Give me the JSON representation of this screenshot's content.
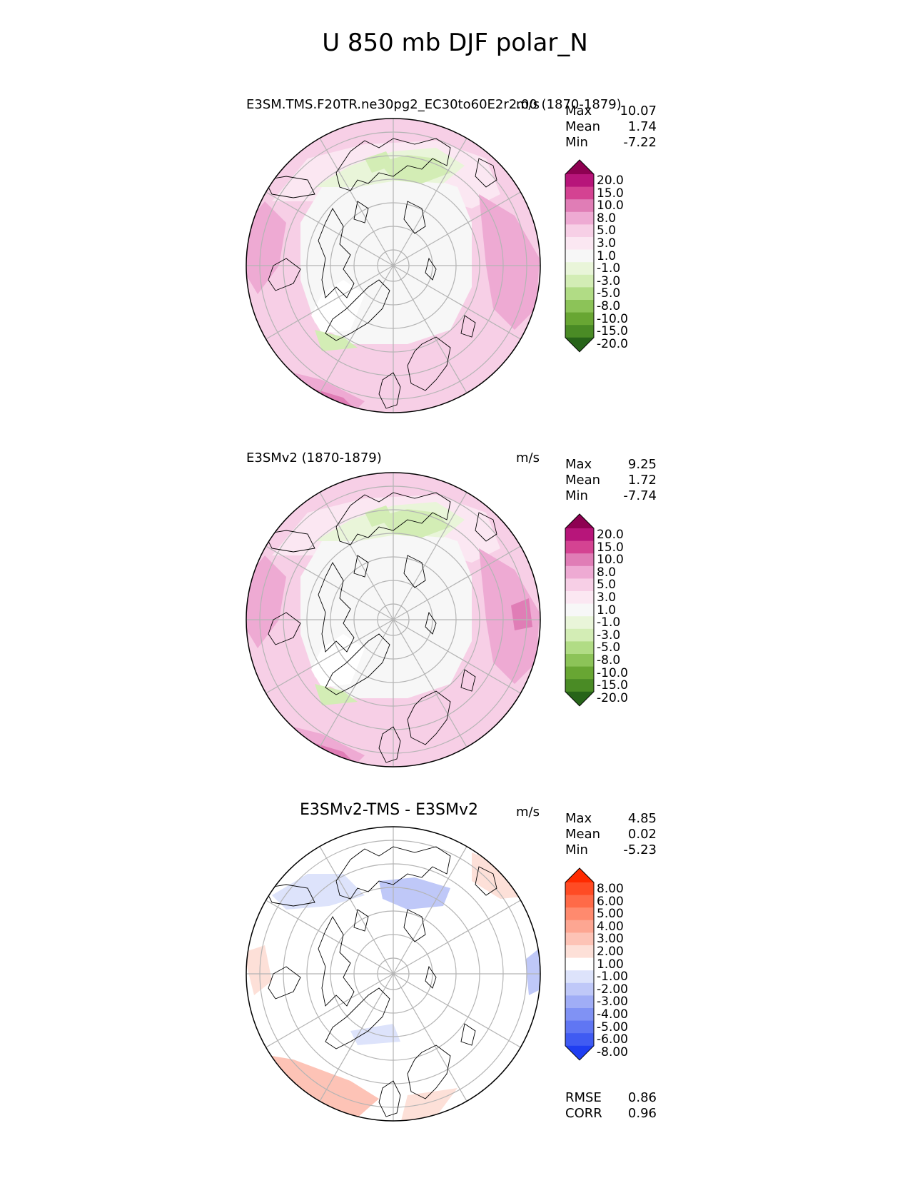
{
  "figure": {
    "title": "U 850 mb DJF polar_N"
  },
  "panels": [
    {
      "id": "test",
      "title": "E3SM.TMS.F20TR.ne30pg2_EC30to60E2r2.00 (1870-1879)",
      "units": "m/s",
      "stats": {
        "max_label": "Max",
        "max": "10.07",
        "mean_label": "Mean",
        "mean": "1.74",
        "min_label": "Min",
        "min": "-7.22"
      },
      "colorbar": {
        "labels": [
          "20.0",
          "15.0",
          "10.0",
          "8.0",
          "5.0",
          "3.0",
          "1.0",
          "-1.0",
          "-3.0",
          "-5.0",
          "-8.0",
          "-10.0",
          "-15.0",
          "-20.0"
        ],
        "colors": [
          "#8e0152",
          "#b7157a",
          "#d44392",
          "#e07db6",
          "#eeaad3",
          "#f7cfe6",
          "#fbe7f2",
          "#f7f7f7",
          "#e9f5d9",
          "#d3edb5",
          "#b1dc85",
          "#8cc358",
          "#68a633",
          "#4a8b25",
          "#276419"
        ]
      }
    },
    {
      "id": "ref",
      "title": "E3SMv2 (1870-1879)",
      "units": "m/s",
      "stats": {
        "max_label": "Max",
        "max": "9.25",
        "mean_label": "Mean",
        "mean": "1.72",
        "min_label": "Min",
        "min": "-7.74"
      },
      "colorbar": {
        "labels": [
          "20.0",
          "15.0",
          "10.0",
          "8.0",
          "5.0",
          "3.0",
          "1.0",
          "-1.0",
          "-3.0",
          "-5.0",
          "-8.0",
          "-10.0",
          "-15.0",
          "-20.0"
        ],
        "colors": [
          "#8e0152",
          "#b7157a",
          "#d44392",
          "#e07db6",
          "#eeaad3",
          "#f7cfe6",
          "#fbe7f2",
          "#f7f7f7",
          "#e9f5d9",
          "#d3edb5",
          "#b1dc85",
          "#8cc358",
          "#68a633",
          "#4a8b25",
          "#276419"
        ]
      }
    },
    {
      "id": "diff",
      "title": "E3SMv2-TMS - E3SMv2",
      "units": "m/s",
      "stats": {
        "max_label": "Max",
        "max": "4.85",
        "mean_label": "Mean",
        "mean": "0.02",
        "min_label": "Min",
        "min": "-5.23"
      },
      "colorbar": {
        "labels": [
          "8.00",
          "6.00",
          "5.00",
          "4.00",
          "3.00",
          "2.00",
          "1.00",
          "-1.00",
          "-2.00",
          "-3.00",
          "-4.00",
          "-5.00",
          "-6.00",
          "-8.00"
        ],
        "colors": [
          "#ff2a00",
          "#ff4b24",
          "#ff6a48",
          "#ff8a6e",
          "#fda692",
          "#fdc3b6",
          "#fde0d8",
          "#ffffff",
          "#dde3fb",
          "#bfc8f8",
          "#a0adf6",
          "#8092f4",
          "#6076f3",
          "#405bf2",
          "#1f3ef1"
        ]
      },
      "rmse_label": "RMSE",
      "rmse": "0.86",
      "corr_label": "CORR",
      "corr": "0.96"
    }
  ]
}
